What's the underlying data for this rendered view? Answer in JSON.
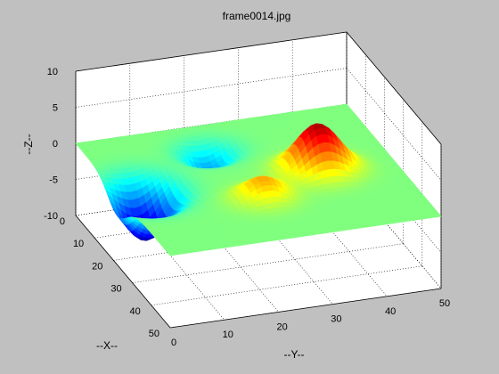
{
  "figure": {
    "background": "#c0c0c0",
    "axes_background": "#ffffff"
  },
  "chart_data": {
    "type": "surface",
    "title": "frame0014.jpg",
    "xlabel": "--X--",
    "ylabel": "--Y--",
    "zlabel": "--Z--",
    "xlim": [
      0,
      50
    ],
    "ylim": [
      0,
      50
    ],
    "zlim": [
      -10,
      10
    ],
    "xticks": [
      0,
      10,
      20,
      30,
      40,
      50
    ],
    "yticks": [
      0,
      10,
      20,
      30,
      40,
      50
    ],
    "zticks": [
      -10,
      -5,
      0,
      5,
      10
    ],
    "grid": true,
    "colormap": "jet",
    "clim": [
      -7,
      7
    ],
    "surface_features": [
      {
        "kind": "dip",
        "x": 22,
        "y": 5,
        "depth": -7,
        "sx": 5,
        "sy": 4
      },
      {
        "kind": "dip",
        "x": 10,
        "y": 21,
        "depth": -3,
        "sx": 3.5,
        "sy": 3.5
      },
      {
        "kind": "peak",
        "x": 25,
        "y": 36,
        "height": 6.5,
        "sx": 4,
        "sy": 4
      },
      {
        "kind": "peak",
        "x": 33,
        "y": 23,
        "height": 3,
        "sx": 3.5,
        "sy": 3.5
      }
    ]
  }
}
